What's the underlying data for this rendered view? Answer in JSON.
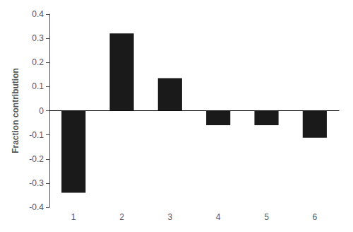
{
  "chart_data": {
    "type": "bar",
    "ylabel": "Fraction contribution",
    "categories": [
      1,
      2,
      3,
      4,
      5,
      6
    ],
    "values": [
      -0.34,
      0.32,
      0.135,
      -0.06,
      -0.06,
      -0.112
    ],
    "color": "#1a1a1a",
    "ylim": [
      -0.4,
      0.4
    ],
    "yticks": [
      -0.4,
      -0.3,
      -0.2,
      -0.1,
      0,
      0.1,
      0.2,
      0.3,
      0.4
    ],
    "grid": false
  }
}
